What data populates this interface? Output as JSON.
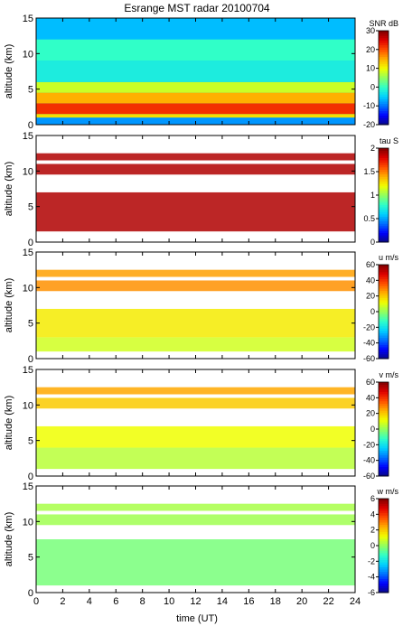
{
  "title": "Esrange MST radar 20100704",
  "xlabel": "time (UT)",
  "chart_data": [
    {
      "type": "heatmap",
      "name": "SNR",
      "title": "Esrange MST radar 20100704",
      "ylabel": "altitude (km)",
      "ylim": [
        0,
        15
      ],
      "xlim": [
        0,
        24
      ],
      "yticks": [
        "0",
        "5",
        "10",
        "15"
      ],
      "colorbar": {
        "label": "SNR dB",
        "range": [
          -20,
          30
        ],
        "ticks": [
          "30",
          "20",
          "10",
          "0",
          "-10",
          "-20"
        ]
      },
      "layers": [
        {
          "alt_range": [
            0.0,
            1.0
          ],
          "value": -8
        },
        {
          "alt_range": [
            1.0,
            1.5
          ],
          "value": 12
        },
        {
          "alt_range": [
            1.5,
            3.0
          ],
          "value": 22
        },
        {
          "alt_range": [
            3.0,
            4.5
          ],
          "value": 15
        },
        {
          "alt_range": [
            4.5,
            6.0
          ],
          "value": 8
        },
        {
          "alt_range": [
            6.0,
            9.0
          ],
          "value": -2
        },
        {
          "alt_range": [
            9.0,
            12.0
          ],
          "value": 0
        },
        {
          "alt_range": [
            12.0,
            15.0
          ],
          "value": -6
        }
      ]
    },
    {
      "type": "heatmap",
      "name": "tau",
      "ylabel": "altitude (km)",
      "ylim": [
        0,
        15
      ],
      "xlim": [
        0,
        24
      ],
      "yticks": [
        "0",
        "5",
        "10",
        "15"
      ],
      "colorbar": {
        "label": "tau S",
        "range": [
          0,
          2
        ],
        "ticks": [
          "2",
          "1.5",
          "1",
          "0.5",
          "0"
        ]
      },
      "layers": [
        {
          "alt_range": [
            1.5,
            7.0
          ],
          "value": 1.9
        },
        {
          "alt_range": [
            9.5,
            11.0
          ],
          "value": 1.9
        },
        {
          "alt_range": [
            11.5,
            12.5
          ],
          "value": 1.9
        }
      ]
    },
    {
      "type": "heatmap",
      "name": "u",
      "ylabel": "altitude (km)",
      "ylim": [
        0,
        15
      ],
      "xlim": [
        0,
        24
      ],
      "yticks": [
        "0",
        "5",
        "10",
        "15"
      ],
      "colorbar": {
        "label": "u m/s",
        "range": [
          -60,
          60
        ],
        "ticks": [
          "60",
          "40",
          "20",
          "0",
          "-20",
          "-40",
          "-60"
        ]
      },
      "layers": [
        {
          "alt_range": [
            1.0,
            3.0
          ],
          "value": 8
        },
        {
          "alt_range": [
            3.0,
            7.0
          ],
          "value": 15
        },
        {
          "alt_range": [
            9.5,
            11.0
          ],
          "value": 28
        },
        {
          "alt_range": [
            11.5,
            12.5
          ],
          "value": 26
        }
      ]
    },
    {
      "type": "heatmap",
      "name": "v",
      "ylabel": "altitude (km)",
      "ylim": [
        0,
        15
      ],
      "xlim": [
        0,
        24
      ],
      "yticks": [
        "0",
        "5",
        "10",
        "15"
      ],
      "colorbar": {
        "label": "v m/s",
        "range": [
          -60,
          60
        ],
        "ticks": [
          "60",
          "40",
          "20",
          "0",
          "-20",
          "-40",
          "-60"
        ]
      },
      "layers": [
        {
          "alt_range": [
            1.0,
            4.0
          ],
          "value": 5
        },
        {
          "alt_range": [
            4.0,
            7.0
          ],
          "value": 12
        },
        {
          "alt_range": [
            9.5,
            11.0
          ],
          "value": 20
        },
        {
          "alt_range": [
            11.5,
            12.5
          ],
          "value": 25
        }
      ]
    },
    {
      "type": "heatmap",
      "name": "w",
      "ylabel": "altitude (km)",
      "ylim": [
        0,
        15
      ],
      "xlim": [
        0,
        24
      ],
      "yticks": [
        "0",
        "5",
        "10",
        "15"
      ],
      "colorbar": {
        "label": "w m/s",
        "range": [
          -6,
          6
        ],
        "ticks": [
          "6",
          "4",
          "2",
          "0",
          "-2",
          "-4",
          "-6"
        ]
      },
      "layers": [
        {
          "alt_range": [
            1.0,
            7.5
          ],
          "value": -0.3
        },
        {
          "alt_range": [
            9.5,
            11.0
          ],
          "value": 0.2
        },
        {
          "alt_range": [
            11.5,
            12.5
          ],
          "value": 0.3
        }
      ]
    }
  ],
  "xticks": [
    "0",
    "2",
    "4",
    "6",
    "8",
    "10",
    "12",
    "14",
    "16",
    "18",
    "20",
    "22",
    "24"
  ],
  "colormap": [
    "#0a0a80",
    "#0000ff",
    "#0070ff",
    "#00d0ff",
    "#30ffc8",
    "#90ff60",
    "#f0ff00",
    "#ffb000",
    "#ff5000",
    "#e00000",
    "#800000"
  ]
}
